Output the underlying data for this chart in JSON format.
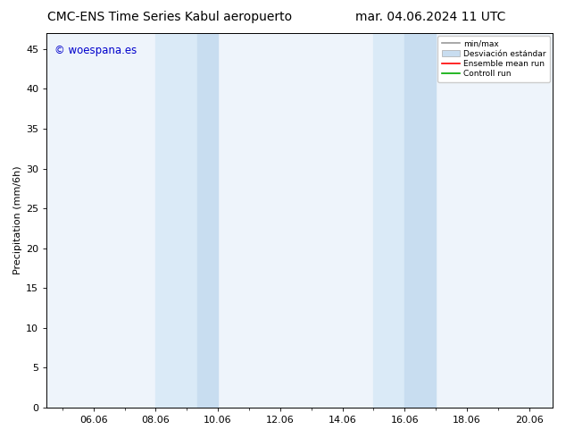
{
  "title_left": "CMC-ENS Time Series Kabul aeropuerto",
  "title_right": "mar. 04.06.2024 11 UTC",
  "ylabel": "Precipitation (mm/6h)",
  "watermark": "© woespana.es",
  "watermark_color": "#0000cc",
  "xlim_start": 4.5,
  "xlim_end": 20.75,
  "ylim_bottom": 0,
  "ylim_top": 47,
  "yticks": [
    0,
    5,
    10,
    15,
    20,
    25,
    30,
    35,
    40,
    45
  ],
  "xtick_labels": [
    "06.06",
    "08.06",
    "10.06",
    "12.06",
    "14.06",
    "16.06",
    "18.06",
    "20.06"
  ],
  "xtick_positions": [
    6,
    8,
    10,
    12,
    14,
    16,
    18,
    20
  ],
  "plot_bg_color": "#eef4fb",
  "shaded_bands": [
    {
      "x_start": 8.0,
      "x_end": 9.33,
      "color": "#daeaf7"
    },
    {
      "x_start": 9.33,
      "x_end": 10.0,
      "color": "#c8ddf0"
    },
    {
      "x_start": 15.0,
      "x_end": 16.0,
      "color": "#daeaf7"
    },
    {
      "x_start": 16.0,
      "x_end": 17.0,
      "color": "#c8ddf0"
    }
  ],
  "legend_line_minmax_color": "#999999",
  "legend_band_color": "#c8ddf0",
  "legend_ens_color": "#ff0000",
  "legend_ctrl_color": "#00aa00",
  "legend_label_minmax": "min/max",
  "legend_label_band": "Desviación estándar",
  "legend_label_ens": "Ensemble mean run",
  "legend_label_ctrl": "Controll run",
  "background_color": "#ffffff",
  "tick_color": "#000000",
  "title_fontsize": 10,
  "axis_label_fontsize": 8,
  "tick_fontsize": 8
}
